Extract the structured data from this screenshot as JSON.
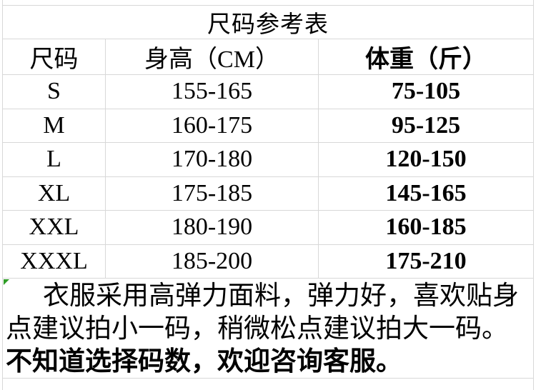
{
  "table": {
    "title": "尺码参考表",
    "columns": [
      "尺码",
      "身高（CM）",
      "体重（斤）"
    ],
    "rows": [
      {
        "size": "S",
        "height": "155-165",
        "weight": "75-105"
      },
      {
        "size": "M",
        "height": "160-175",
        "weight": "95-125"
      },
      {
        "size": "L",
        "height": "170-180",
        "weight": "120-150"
      },
      {
        "size": "XL",
        "height": "175-185",
        "weight": "145-165"
      },
      {
        "size": "XXL",
        "height": "180-190",
        "weight": "160-185"
      },
      {
        "size": "XXXL",
        "height": "185-200",
        "weight": "175-210"
      }
    ]
  },
  "note": {
    "normal_text": "衣服采用高弹力面料，弹力好，喜欢贴身点建议拍小一码，稍微松点建议拍大一码。",
    "bold_text": "不知道选择码数，欢迎咨询客服。"
  },
  "icons": {
    "excel_error_indicator": "green-corner-triangle"
  },
  "colors": {
    "grid_border": "#d8d8d8",
    "text": "#000000",
    "error_marker_green": "#2f9d27",
    "background": "#ffffff"
  }
}
